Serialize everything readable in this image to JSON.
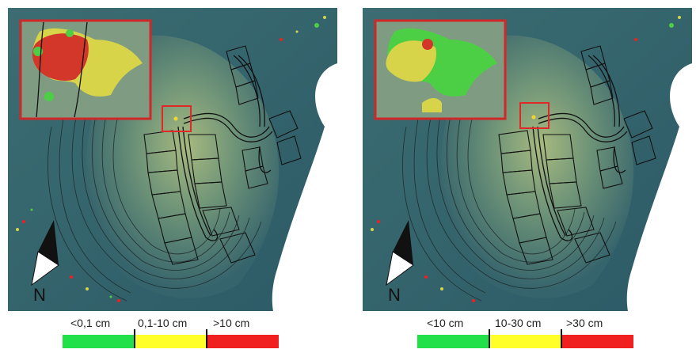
{
  "panels": [
    {
      "id": "left",
      "north_label": "N",
      "legend": {
        "classes": [
          {
            "label": "<0,1 cm",
            "color": "#22e04a"
          },
          {
            "label": "0,1-10 cm",
            "color": "#ffff2a"
          },
          {
            "label": ">10 cm",
            "color": "#f02020"
          }
        ]
      },
      "inset_colors": [
        "#d2372a",
        "#d7d44a",
        "#4ccf44"
      ]
    },
    {
      "id": "right",
      "north_label": "N",
      "legend": {
        "classes": [
          {
            "label": "<10 cm",
            "color": "#22e04a"
          },
          {
            "label": "10-30 cm",
            "color": "#ffff2a"
          },
          {
            "label": ">30 cm",
            "color": "#f02020"
          }
        ]
      },
      "inset_colors": [
        "#d2372a",
        "#d7d44a",
        "#4ccf44"
      ]
    }
  ],
  "colors": {
    "terrain_dark": "#2f5f69",
    "terrain_mid": "#5f8a78",
    "terrain_light": "#9fb47e",
    "sea": "#ffffff",
    "highlight_box": "#e02828",
    "contour": "#1c2b2c"
  }
}
